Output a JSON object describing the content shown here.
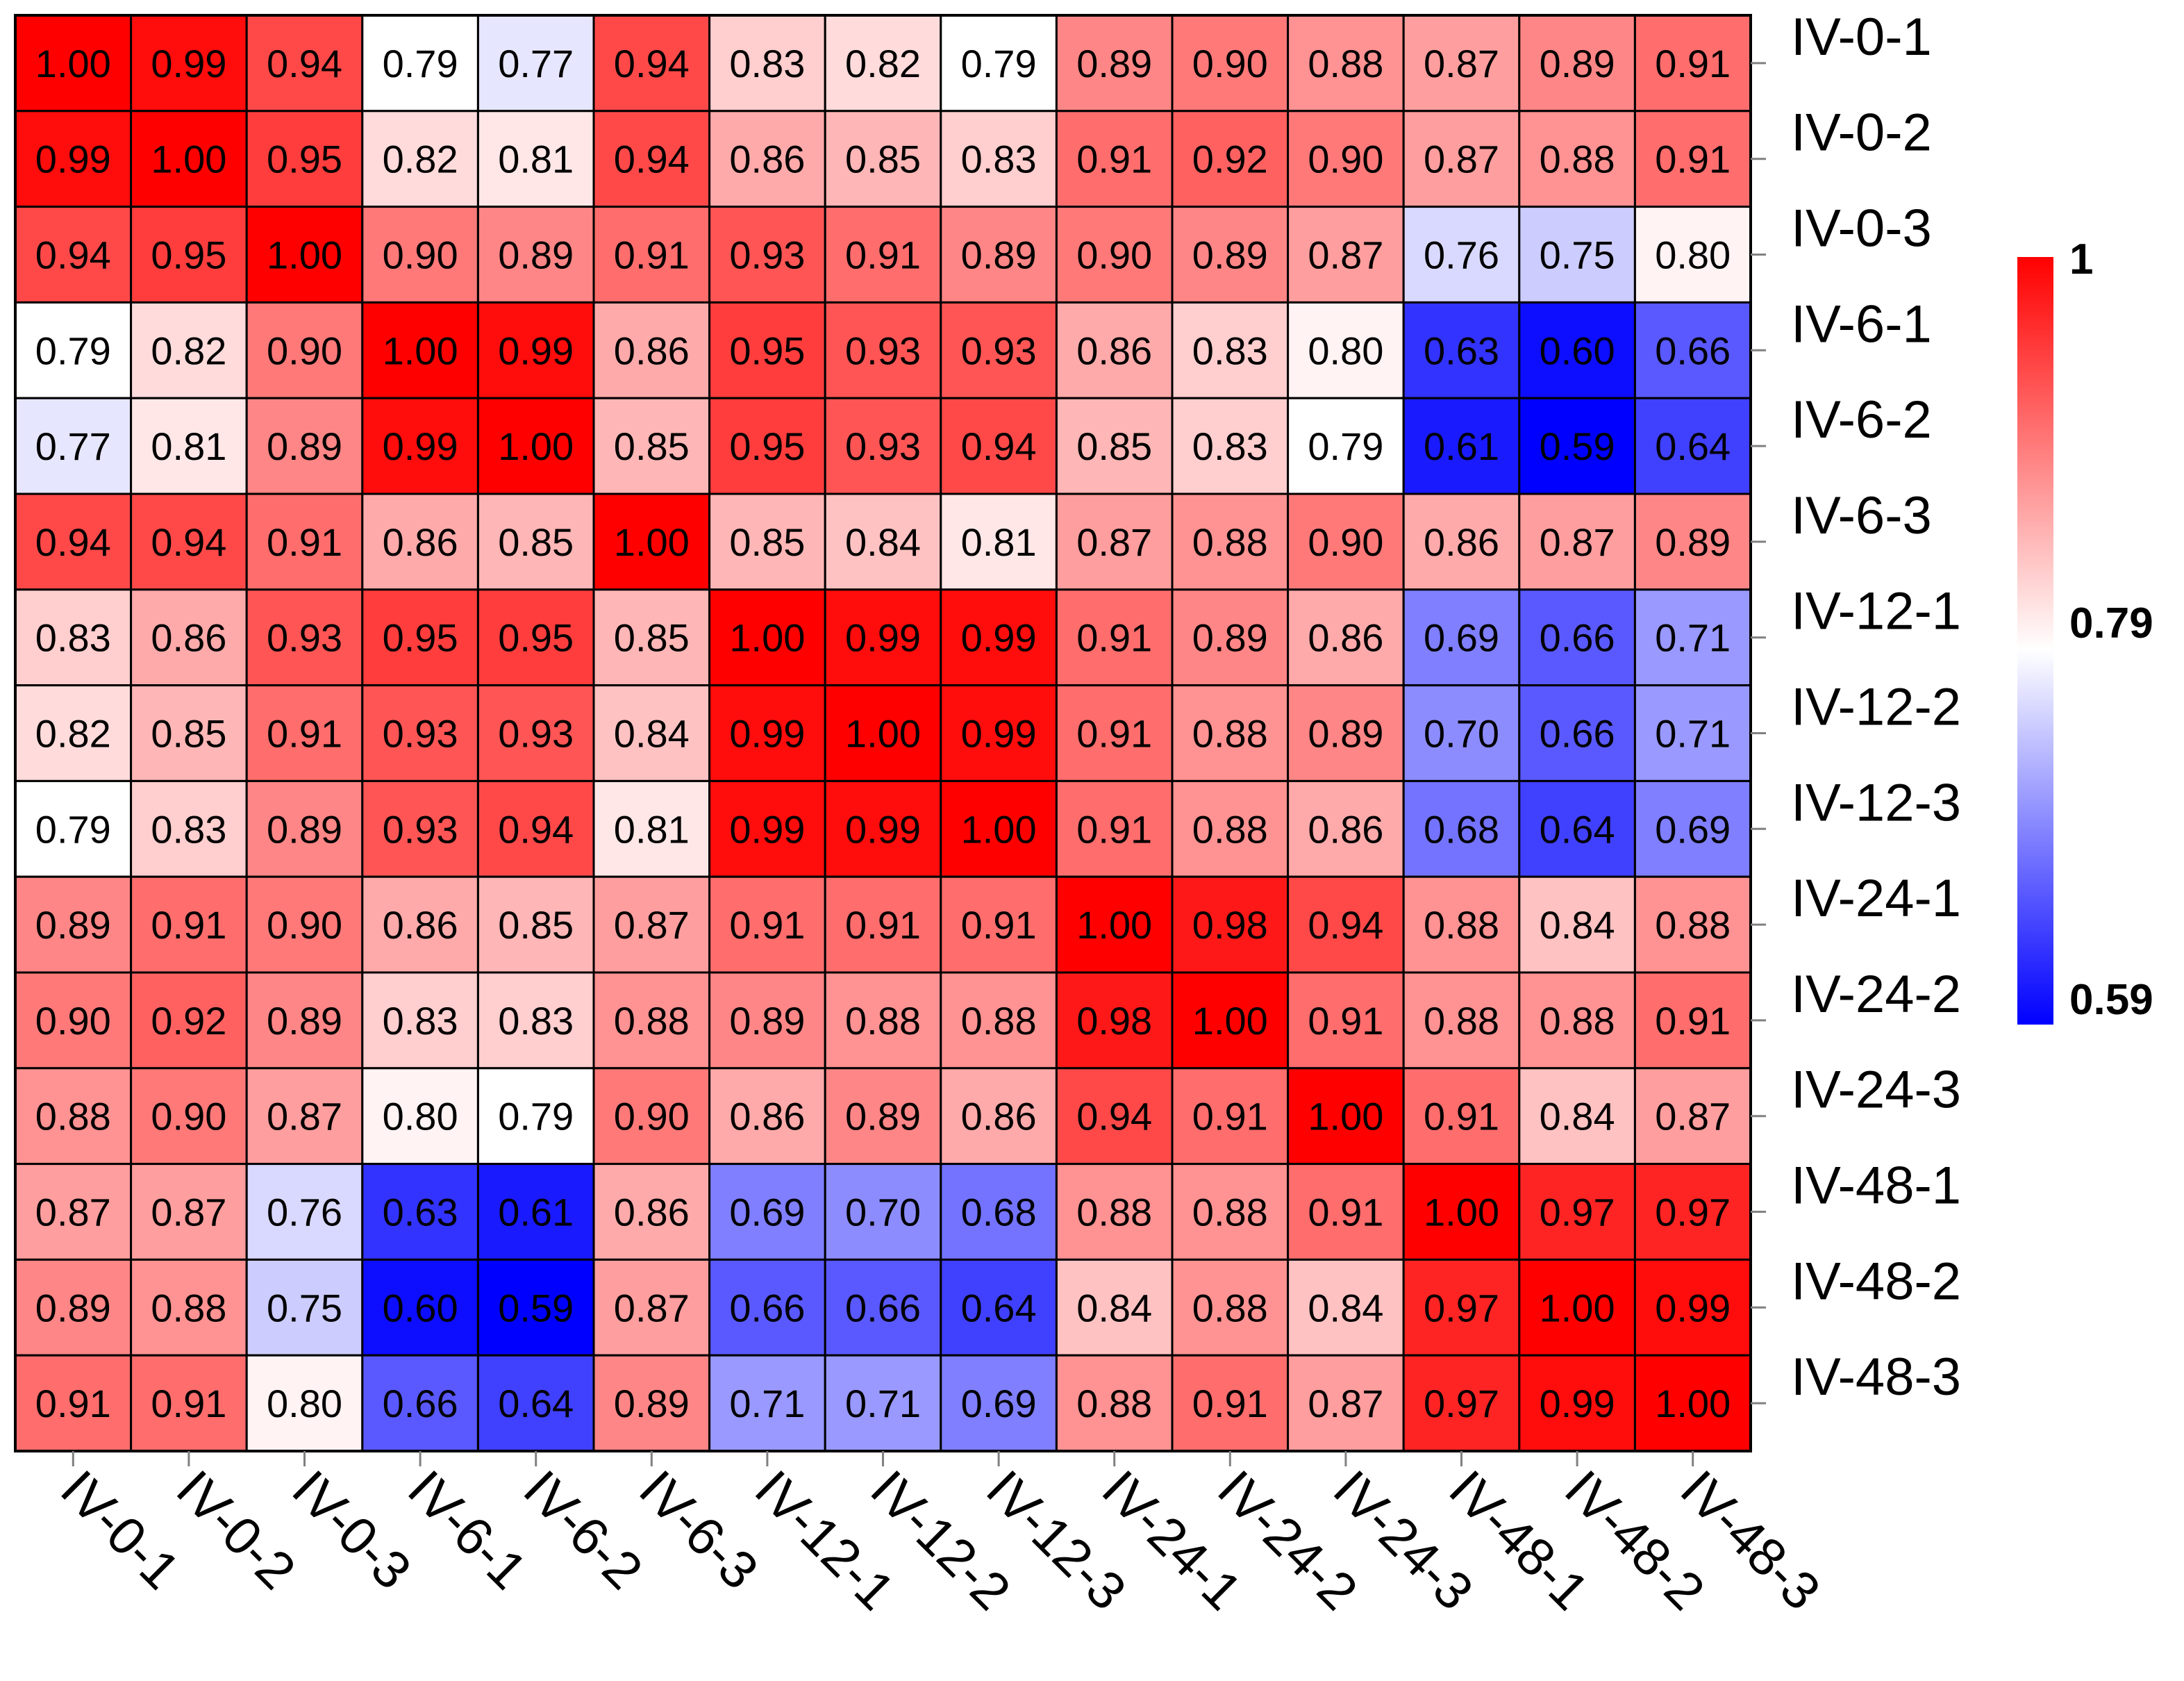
{
  "chart_data": {
    "type": "heatmap",
    "title": "",
    "row_labels": [
      "IV-0-1",
      "IV-0-2",
      "IV-0-3",
      "IV-6-1",
      "IV-6-2",
      "IV-6-3",
      "IV-12-1",
      "IV-12-2",
      "IV-12-3",
      "IV-24-1",
      "IV-24-2",
      "IV-24-3",
      "IV-48-1",
      "IV-48-2",
      "IV-48-3"
    ],
    "col_labels": [
      "IV-0-1",
      "IV-0-2",
      "IV-0-3",
      "IV-6-1",
      "IV-6-2",
      "IV-6-3",
      "IV-12-1",
      "IV-12-2",
      "IV-12-3",
      "IV-24-1",
      "IV-24-2",
      "IV-24-3",
      "IV-48-1",
      "IV-48-2",
      "IV-48-3"
    ],
    "values": [
      [
        "1.00",
        "0.99",
        "0.94",
        "0.79",
        "0.77",
        "0.94",
        "0.83",
        "0.82",
        "0.79",
        "0.89",
        "0.90",
        "0.88",
        "0.87",
        "0.89",
        "0.91"
      ],
      [
        "0.99",
        "1.00",
        "0.95",
        "0.82",
        "0.81",
        "0.94",
        "0.86",
        "0.85",
        "0.83",
        "0.91",
        "0.92",
        "0.90",
        "0.87",
        "0.88",
        "0.91"
      ],
      [
        "0.94",
        "0.95",
        "1.00",
        "0.90",
        "0.89",
        "0.91",
        "0.93",
        "0.91",
        "0.89",
        "0.90",
        "0.89",
        "0.87",
        "0.76",
        "0.75",
        "0.80"
      ],
      [
        "0.79",
        "0.82",
        "0.90",
        "1.00",
        "0.99",
        "0.86",
        "0.95",
        "0.93",
        "0.93",
        "0.86",
        "0.83",
        "0.80",
        "0.63",
        "0.60",
        "0.66"
      ],
      [
        "0.77",
        "0.81",
        "0.89",
        "0.99",
        "1.00",
        "0.85",
        "0.95",
        "0.93",
        "0.94",
        "0.85",
        "0.83",
        "0.79",
        "0.61",
        "0.59",
        "0.64"
      ],
      [
        "0.94",
        "0.94",
        "0.91",
        "0.86",
        "0.85",
        "1.00",
        "0.85",
        "0.84",
        "0.81",
        "0.87",
        "0.88",
        "0.90",
        "0.86",
        "0.87",
        "0.89"
      ],
      [
        "0.83",
        "0.86",
        "0.93",
        "0.95",
        "0.95",
        "0.85",
        "1.00",
        "0.99",
        "0.99",
        "0.91",
        "0.89",
        "0.86",
        "0.69",
        "0.66",
        "0.71"
      ],
      [
        "0.82",
        "0.85",
        "0.91",
        "0.93",
        "0.93",
        "0.84",
        "0.99",
        "1.00",
        "0.99",
        "0.91",
        "0.88",
        "0.89",
        "0.70",
        "0.66",
        "0.71"
      ],
      [
        "0.79",
        "0.83",
        "0.89",
        "0.93",
        "0.94",
        "0.81",
        "0.99",
        "0.99",
        "1.00",
        "0.91",
        "0.88",
        "0.86",
        "0.68",
        "0.64",
        "0.69"
      ],
      [
        "0.89",
        "0.91",
        "0.90",
        "0.86",
        "0.85",
        "0.87",
        "0.91",
        "0.91",
        "0.91",
        "1.00",
        "0.98",
        "0.94",
        "0.88",
        "0.84",
        "0.88"
      ],
      [
        "0.90",
        "0.92",
        "0.89",
        "0.83",
        "0.83",
        "0.88",
        "0.89",
        "0.88",
        "0.88",
        "0.98",
        "1.00",
        "0.91",
        "0.88",
        "0.88",
        "0.91"
      ],
      [
        "0.88",
        "0.90",
        "0.87",
        "0.80",
        "0.79",
        "0.90",
        "0.86",
        "0.89",
        "0.86",
        "0.94",
        "0.91",
        "1.00",
        "0.91",
        "0.84",
        "0.87"
      ],
      [
        "0.87",
        "0.87",
        "0.76",
        "0.63",
        "0.61",
        "0.86",
        "0.69",
        "0.70",
        "0.68",
        "0.88",
        "0.88",
        "0.91",
        "1.00",
        "0.97",
        "0.97"
      ],
      [
        "0.89",
        "0.88",
        "0.75",
        "0.60",
        "0.59",
        "0.87",
        "0.66",
        "0.66",
        "0.64",
        "0.84",
        "0.88",
        "0.84",
        "0.97",
        "1.00",
        "0.99"
      ],
      [
        "0.91",
        "0.91",
        "0.80",
        "0.66",
        "0.64",
        "0.89",
        "0.71",
        "0.71",
        "0.69",
        "0.88",
        "0.91",
        "0.87",
        "0.97",
        "0.99",
        "1.00"
      ]
    ],
    "color_scale": {
      "min": 0.59,
      "mid": 0.79,
      "max": 1,
      "min_color": "#0000ff",
      "mid_color": "#ffffff",
      "max_color": "#ff0000",
      "tick_labels": {
        "max": "1",
        "mid": "0.79",
        "min": "0.59"
      }
    },
    "legend": "right"
  }
}
